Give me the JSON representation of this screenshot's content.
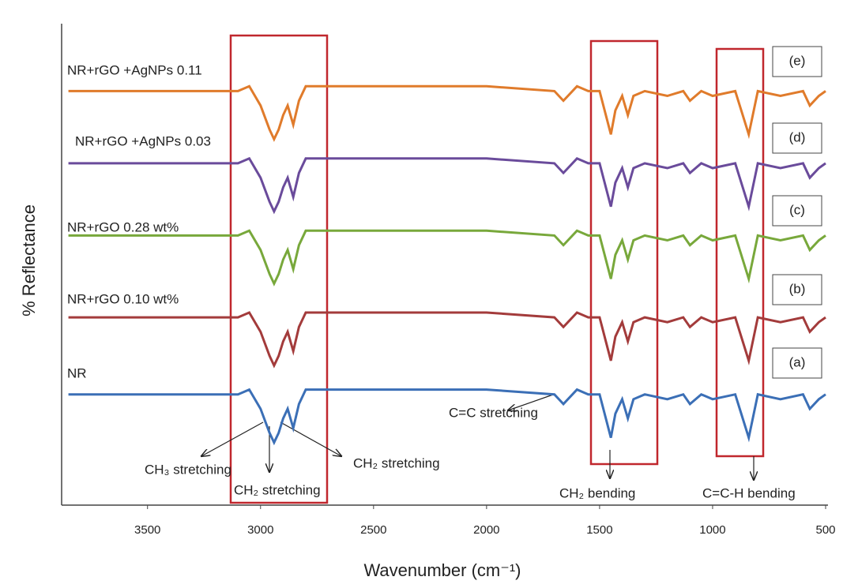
{
  "chart_data": {
    "type": "line",
    "x_label": "Wavenumber (cm⁻¹)",
    "y_label": "% Reflectance",
    "x": [
      3850,
      3500,
      3100,
      3050,
      3000,
      2960,
      2940,
      2920,
      2900,
      2880,
      2855,
      2830,
      2800,
      2700,
      2500,
      2000,
      1700,
      1660,
      1600,
      1550,
      1500,
      1450,
      1430,
      1400,
      1375,
      1350,
      1300,
      1200,
      1130,
      1100,
      1050,
      1000,
      900,
      880,
      840,
      800,
      700,
      600,
      570,
      530,
      500
    ],
    "xlim": [
      3880,
      500
    ],
    "xticks": [
      3500,
      3000,
      2500,
      2000,
      1500,
      1000,
      500
    ],
    "ylim": [
      0,
      100
    ],
    "series": [
      {
        "name": "NR",
        "tag": "(a)",
        "color": "#3b6fb6",
        "values": [
          23,
          23,
          23,
          24,
          20,
          15,
          13,
          15,
          18,
          20,
          16,
          21,
          24,
          24,
          24,
          24,
          23,
          21,
          24,
          23,
          23,
          14,
          19,
          22,
          18,
          22,
          23,
          22,
          23,
          21,
          23,
          22,
          23,
          20,
          14,
          23,
          22,
          23,
          20,
          22,
          23
        ]
      },
      {
        "name": "NR+rGO 0.10 wt%",
        "tag": "(b)",
        "color": "#a33b3b",
        "values": [
          39,
          39,
          39,
          40,
          36,
          31,
          29,
          31,
          34,
          36,
          32,
          37,
          40,
          40,
          40,
          40,
          39,
          37,
          40,
          39,
          39,
          30,
          35,
          38,
          34,
          38,
          39,
          38,
          39,
          37,
          39,
          38,
          39,
          36,
          30,
          39,
          38,
          39,
          36,
          38,
          39
        ]
      },
      {
        "name": "NR+rGO 0.28 wt%",
        "tag": "(c)",
        "color": "#78a83b",
        "values": [
          56,
          56,
          56,
          57,
          53,
          48,
          46,
          48,
          51,
          53,
          49,
          54,
          57,
          57,
          57,
          57,
          56,
          54,
          57,
          56,
          56,
          47,
          52,
          55,
          51,
          55,
          56,
          55,
          56,
          54,
          56,
          55,
          56,
          53,
          47,
          56,
          55,
          56,
          53,
          55,
          56
        ]
      },
      {
        "name": "NR+rGO +AgNPs 0.03",
        "tag": "(d)",
        "color": "#6a4b9b",
        "values": [
          71,
          71,
          71,
          72,
          68,
          63,
          61,
          63,
          66,
          68,
          64,
          69,
          72,
          72,
          72,
          72,
          71,
          69,
          72,
          71,
          71,
          62,
          67,
          70,
          66,
          70,
          71,
          70,
          71,
          69,
          71,
          70,
          71,
          68,
          62,
          71,
          70,
          71,
          68,
          70,
          71
        ]
      },
      {
        "name": "NR+rGO +AgNPs 0.11",
        "tag": "(e)",
        "color": "#e07b2b",
        "values": [
          86,
          86,
          86,
          87,
          83,
          78,
          76,
          78,
          81,
          83,
          79,
          84,
          87,
          87,
          87,
          87,
          86,
          84,
          87,
          86,
          86,
          77,
          82,
          85,
          81,
          85,
          86,
          85,
          86,
          84,
          86,
          85,
          86,
          83,
          77,
          86,
          85,
          86,
          83,
          85,
          86
        ]
      }
    ],
    "annotations": [
      "CH₃ stretching",
      "CH₂ stretching",
      "CH₂ stretching",
      "C=C stretching",
      "CH₂ bending",
      "C=C-H bending"
    ]
  }
}
